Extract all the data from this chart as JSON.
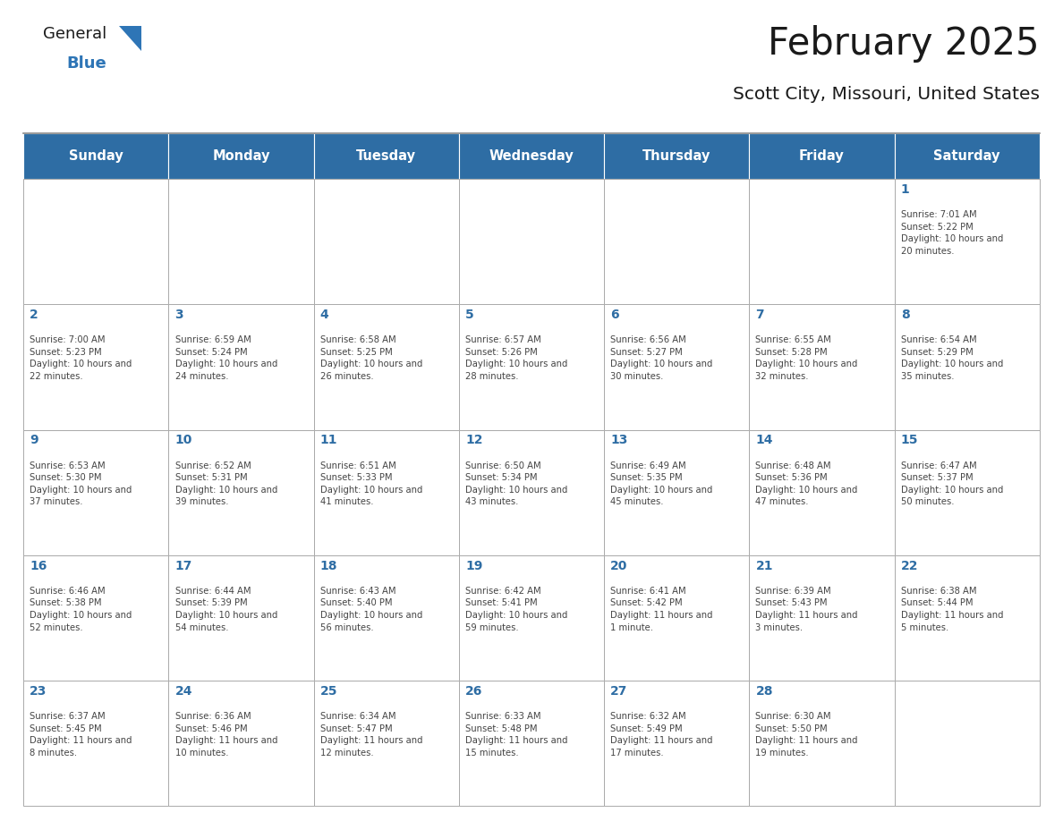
{
  "title": "February 2025",
  "subtitle": "Scott City, Missouri, United States",
  "days_of_week": [
    "Sunday",
    "Monday",
    "Tuesday",
    "Wednesday",
    "Thursday",
    "Friday",
    "Saturday"
  ],
  "header_bg": "#2E6DA4",
  "header_text": "#FFFFFF",
  "cell_bg": "#FFFFFF",
  "day_num_color": "#2E6DA4",
  "cell_text_color": "#444444",
  "title_color": "#1a1a1a",
  "subtitle_color": "#1a1a1a",
  "logo_general_color": "#1a1a1a",
  "logo_blue_color": "#2E75B6",
  "calendar": [
    [
      null,
      null,
      null,
      null,
      null,
      null,
      1
    ],
    [
      2,
      3,
      4,
      5,
      6,
      7,
      8
    ],
    [
      9,
      10,
      11,
      12,
      13,
      14,
      15
    ],
    [
      16,
      17,
      18,
      19,
      20,
      21,
      22
    ],
    [
      23,
      24,
      25,
      26,
      27,
      28,
      null
    ]
  ],
  "cell_data": {
    "1": {
      "sunrise": "7:01 AM",
      "sunset": "5:22 PM",
      "daylight": "10 hours and 20 minutes."
    },
    "2": {
      "sunrise": "7:00 AM",
      "sunset": "5:23 PM",
      "daylight": "10 hours and 22 minutes."
    },
    "3": {
      "sunrise": "6:59 AM",
      "sunset": "5:24 PM",
      "daylight": "10 hours and 24 minutes."
    },
    "4": {
      "sunrise": "6:58 AM",
      "sunset": "5:25 PM",
      "daylight": "10 hours and 26 minutes."
    },
    "5": {
      "sunrise": "6:57 AM",
      "sunset": "5:26 PM",
      "daylight": "10 hours and 28 minutes."
    },
    "6": {
      "sunrise": "6:56 AM",
      "sunset": "5:27 PM",
      "daylight": "10 hours and 30 minutes."
    },
    "7": {
      "sunrise": "6:55 AM",
      "sunset": "5:28 PM",
      "daylight": "10 hours and 32 minutes."
    },
    "8": {
      "sunrise": "6:54 AM",
      "sunset": "5:29 PM",
      "daylight": "10 hours and 35 minutes."
    },
    "9": {
      "sunrise": "6:53 AM",
      "sunset": "5:30 PM",
      "daylight": "10 hours and 37 minutes."
    },
    "10": {
      "sunrise": "6:52 AM",
      "sunset": "5:31 PM",
      "daylight": "10 hours and 39 minutes."
    },
    "11": {
      "sunrise": "6:51 AM",
      "sunset": "5:33 PM",
      "daylight": "10 hours and 41 minutes."
    },
    "12": {
      "sunrise": "6:50 AM",
      "sunset": "5:34 PM",
      "daylight": "10 hours and 43 minutes."
    },
    "13": {
      "sunrise": "6:49 AM",
      "sunset": "5:35 PM",
      "daylight": "10 hours and 45 minutes."
    },
    "14": {
      "sunrise": "6:48 AM",
      "sunset": "5:36 PM",
      "daylight": "10 hours and 47 minutes."
    },
    "15": {
      "sunrise": "6:47 AM",
      "sunset": "5:37 PM",
      "daylight": "10 hours and 50 minutes."
    },
    "16": {
      "sunrise": "6:46 AM",
      "sunset": "5:38 PM",
      "daylight": "10 hours and 52 minutes."
    },
    "17": {
      "sunrise": "6:44 AM",
      "sunset": "5:39 PM",
      "daylight": "10 hours and 54 minutes."
    },
    "18": {
      "sunrise": "6:43 AM",
      "sunset": "5:40 PM",
      "daylight": "10 hours and 56 minutes."
    },
    "19": {
      "sunrise": "6:42 AM",
      "sunset": "5:41 PM",
      "daylight": "10 hours and 59 minutes."
    },
    "20": {
      "sunrise": "6:41 AM",
      "sunset": "5:42 PM",
      "daylight": "11 hours and 1 minute."
    },
    "21": {
      "sunrise": "6:39 AM",
      "sunset": "5:43 PM",
      "daylight": "11 hours and 3 minutes."
    },
    "22": {
      "sunrise": "6:38 AM",
      "sunset": "5:44 PM",
      "daylight": "11 hours and 5 minutes."
    },
    "23": {
      "sunrise": "6:37 AM",
      "sunset": "5:45 PM",
      "daylight": "11 hours and 8 minutes."
    },
    "24": {
      "sunrise": "6:36 AM",
      "sunset": "5:46 PM",
      "daylight": "11 hours and 10 minutes."
    },
    "25": {
      "sunrise": "6:34 AM",
      "sunset": "5:47 PM",
      "daylight": "11 hours and 12 minutes."
    },
    "26": {
      "sunrise": "6:33 AM",
      "sunset": "5:48 PM",
      "daylight": "11 hours and 15 minutes."
    },
    "27": {
      "sunrise": "6:32 AM",
      "sunset": "5:49 PM",
      "daylight": "11 hours and 17 minutes."
    },
    "28": {
      "sunrise": "6:30 AM",
      "sunset": "5:50 PM",
      "daylight": "11 hours and 19 minutes."
    }
  }
}
